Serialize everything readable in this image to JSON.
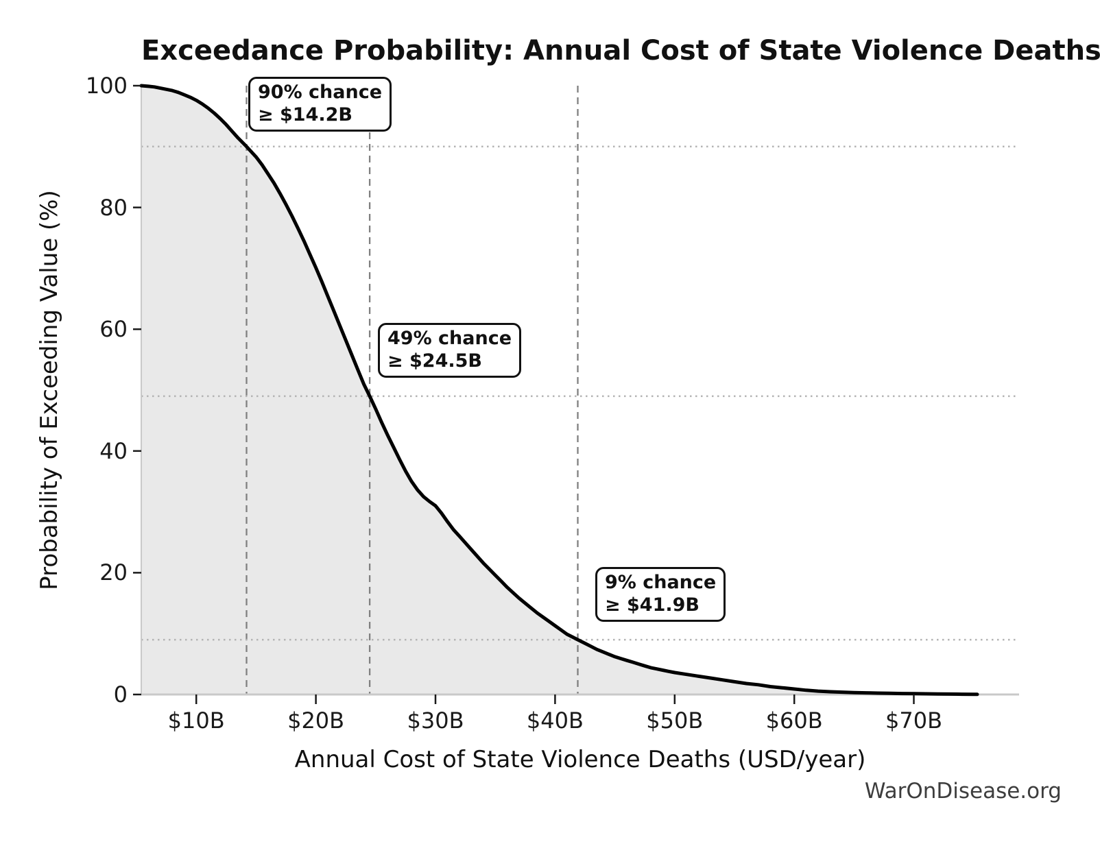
{
  "watermark": "WarOnDisease.org",
  "chart_data": {
    "type": "area",
    "title": "Exceedance Probability: Annual Cost of State Violence Deaths",
    "xlabel": "Annual Cost of State Violence Deaths (USD/year)",
    "ylabel": "Probability of Exceeding Value (%)",
    "xlim": [
      5.4,
      78.8
    ],
    "ylim": [
      0,
      100
    ],
    "x_unit": "USD billions per year",
    "grid": "off (reference lines at annotated probabilities only)",
    "legend": "none",
    "x_ticks": [
      {
        "v": 10,
        "label": "$10B"
      },
      {
        "v": 20,
        "label": "$20B"
      },
      {
        "v": 30,
        "label": "$30B"
      },
      {
        "v": 40,
        "label": "$40B"
      },
      {
        "v": 50,
        "label": "$50B"
      },
      {
        "v": 60,
        "label": "$60B"
      },
      {
        "v": 70,
        "label": "$70B"
      }
    ],
    "y_ticks": [
      {
        "v": 0,
        "label": "0"
      },
      {
        "v": 20,
        "label": "20"
      },
      {
        "v": 40,
        "label": "40"
      },
      {
        "v": 60,
        "label": "60"
      },
      {
        "v": 80,
        "label": "80"
      },
      {
        "v": 100,
        "label": "100"
      }
    ],
    "markers": [
      {
        "prob_pct": 90,
        "value_b": 14.2,
        "line1": "90% chance",
        "line2": "≥ $14.2B"
      },
      {
        "prob_pct": 49,
        "value_b": 24.5,
        "line1": "49% chance",
        "line2": "≥ $24.5B"
      },
      {
        "prob_pct": 9,
        "value_b": 41.9,
        "line1": "9% chance",
        "line2": "≥ $41.9B"
      }
    ],
    "curve": {
      "name": "Exceedance probability of annual cost",
      "points": [
        [
          5.4,
          100
        ],
        [
          6.0,
          99.9
        ],
        [
          6.5,
          99.8
        ],
        [
          7.0,
          99.6
        ],
        [
          7.5,
          99.4
        ],
        [
          8.0,
          99.2
        ],
        [
          8.5,
          98.9
        ],
        [
          9.0,
          98.5
        ],
        [
          9.5,
          98.1
        ],
        [
          10.0,
          97.6
        ],
        [
          10.5,
          97.0
        ],
        [
          11.0,
          96.3
        ],
        [
          11.5,
          95.5
        ],
        [
          12.0,
          94.6
        ],
        [
          12.5,
          93.6
        ],
        [
          13.0,
          92.5
        ],
        [
          13.5,
          91.4
        ],
        [
          14.2,
          90.0
        ],
        [
          15.0,
          88.3
        ],
        [
          15.5,
          87.0
        ],
        [
          16.0,
          85.5
        ],
        [
          16.5,
          84.0
        ],
        [
          17.0,
          82.3
        ],
        [
          17.5,
          80.5
        ],
        [
          18.0,
          78.6
        ],
        [
          18.5,
          76.6
        ],
        [
          19.0,
          74.5
        ],
        [
          19.5,
          72.3
        ],
        [
          20.0,
          70.1
        ],
        [
          20.5,
          67.8
        ],
        [
          21.0,
          65.4
        ],
        [
          21.5,
          63.0
        ],
        [
          22.0,
          60.6
        ],
        [
          22.5,
          58.2
        ],
        [
          23.0,
          55.8
        ],
        [
          23.5,
          53.4
        ],
        [
          24.0,
          51.0
        ],
        [
          24.5,
          49.0
        ],
        [
          25.0,
          46.9
        ],
        [
          25.5,
          44.7
        ],
        [
          26.0,
          42.6
        ],
        [
          26.5,
          40.6
        ],
        [
          27.0,
          38.6
        ],
        [
          27.5,
          36.7
        ],
        [
          28.0,
          35.0
        ],
        [
          28.5,
          33.6
        ],
        [
          29.0,
          32.5
        ],
        [
          29.5,
          31.7
        ],
        [
          30.0,
          31.0
        ],
        [
          30.5,
          29.8
        ],
        [
          31.0,
          28.4
        ],
        [
          31.5,
          27.1
        ],
        [
          32.0,
          26.0
        ],
        [
          32.5,
          24.9
        ],
        [
          33.0,
          23.8
        ],
        [
          33.5,
          22.7
        ],
        [
          34.0,
          21.6
        ],
        [
          34.5,
          20.6
        ],
        [
          35.0,
          19.6
        ],
        [
          35.5,
          18.6
        ],
        [
          36.0,
          17.6
        ],
        [
          36.5,
          16.7
        ],
        [
          37.0,
          15.8
        ],
        [
          37.5,
          15.0
        ],
        [
          38.0,
          14.2
        ],
        [
          38.5,
          13.4
        ],
        [
          39.0,
          12.7
        ],
        [
          39.5,
          12.0
        ],
        [
          40.0,
          11.3
        ],
        [
          40.5,
          10.6
        ],
        [
          41.0,
          9.9
        ],
        [
          41.5,
          9.4
        ],
        [
          41.9,
          9.0
        ],
        [
          42.5,
          8.4
        ],
        [
          43.0,
          7.9
        ],
        [
          43.5,
          7.4
        ],
        [
          44.0,
          7.0
        ],
        [
          44.5,
          6.6
        ],
        [
          45.0,
          6.2
        ],
        [
          45.5,
          5.9
        ],
        [
          46.0,
          5.6
        ],
        [
          46.5,
          5.3
        ],
        [
          47.0,
          5.0
        ],
        [
          47.5,
          4.7
        ],
        [
          48.0,
          4.4
        ],
        [
          48.5,
          4.2
        ],
        [
          49.0,
          4.0
        ],
        [
          49.5,
          3.8
        ],
        [
          50.0,
          3.6
        ],
        [
          51.0,
          3.3
        ],
        [
          52.0,
          3.0
        ],
        [
          53.0,
          2.7
        ],
        [
          54.0,
          2.4
        ],
        [
          55.0,
          2.1
        ],
        [
          56.0,
          1.8
        ],
        [
          57.0,
          1.6
        ],
        [
          58.0,
          1.3
        ],
        [
          59.0,
          1.1
        ],
        [
          60.0,
          0.9
        ],
        [
          61.0,
          0.7
        ],
        [
          62.0,
          0.55
        ],
        [
          63.0,
          0.45
        ],
        [
          64.0,
          0.38
        ],
        [
          65.0,
          0.32
        ],
        [
          66.0,
          0.27
        ],
        [
          67.0,
          0.22
        ],
        [
          68.0,
          0.19
        ],
        [
          69.0,
          0.16
        ],
        [
          70.0,
          0.13
        ],
        [
          71.0,
          0.11
        ],
        [
          72.0,
          0.09
        ],
        [
          73.0,
          0.07
        ],
        [
          74.0,
          0.05
        ],
        [
          75.0,
          0.03
        ],
        [
          75.3,
          0.02
        ]
      ]
    },
    "colors": {
      "curve": "#000000",
      "fill": "#e9e9e9",
      "dashed_line": "#808080",
      "dotted_line": "#b3b3b3",
      "spine": "#c9c9c9",
      "tick": "#1a1a1a",
      "text": "#111111",
      "watermark": "#3d3d3d"
    }
  }
}
